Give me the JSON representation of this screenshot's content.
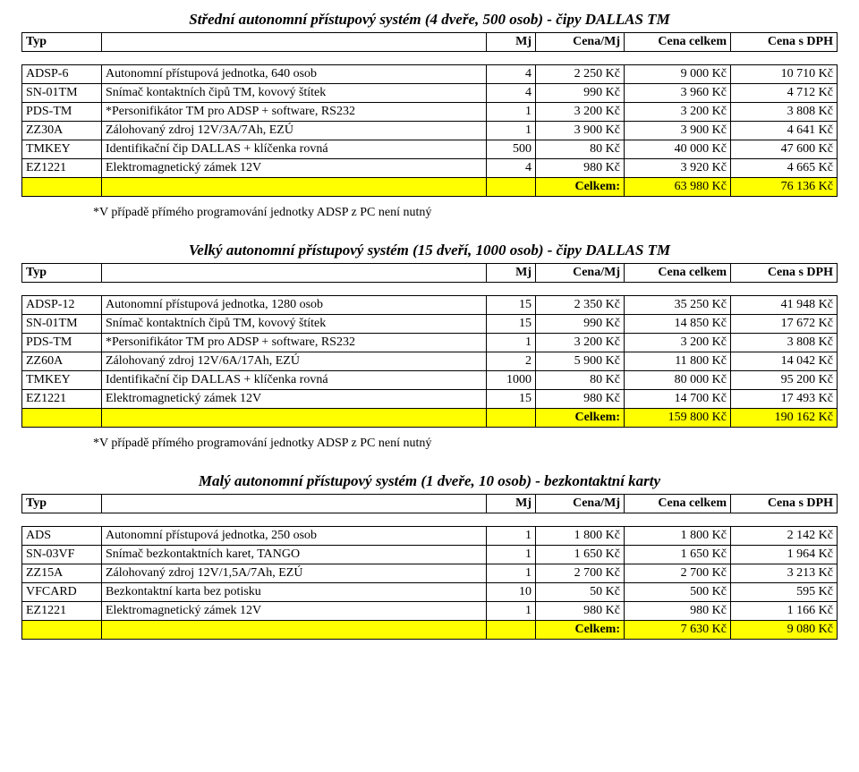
{
  "headers": {
    "typ": "Typ",
    "mj": "Mj",
    "cenamj": "Cena/Mj",
    "celkem": "Cena celkem",
    "dph": "Cena s DPH",
    "sum": "Celkem:"
  },
  "note": "*V případě přímého programování jednotky ADSP z PC není nutný",
  "sections": [
    {
      "title": "Střední autonomní přístupový systém (4 dveře, 500 osob) - čipy DALLAS TM",
      "rows": [
        {
          "typ": "ADSP-6",
          "desc": "Autonomní přístupová jednotka, 640 osob",
          "mj": "4",
          "cenamj": "2 250 Kč",
          "celkem": "9 000 Kč",
          "dph": "10 710 Kč"
        },
        {
          "typ": "SN-01TM",
          "desc": "Snímač kontaktních čipů TM, kovový štítek",
          "mj": "4",
          "cenamj": "990 Kč",
          "celkem": "3 960 Kč",
          "dph": "4 712 Kč"
        },
        {
          "typ": "PDS-TM",
          "desc": "*Personifikátor TM pro ADSP + software, RS232",
          "mj": "1",
          "cenamj": "3 200 Kč",
          "celkem": "3 200 Kč",
          "dph": "3 808 Kč"
        },
        {
          "typ": "ZZ30A",
          "desc": "Zálohovaný zdroj 12V/3A/7Ah, EZÚ",
          "mj": "1",
          "cenamj": "3 900 Kč",
          "celkem": "3 900 Kč",
          "dph": "4 641 Kč"
        },
        {
          "typ": "TMKEY",
          "desc": "Identifikační čip DALLAS + klíčenka rovná",
          "mj": "500",
          "cenamj": "80 Kč",
          "celkem": "40 000 Kč",
          "dph": "47 600 Kč"
        },
        {
          "typ": "EZ1221",
          "desc": "Elektromagnetický zámek 12V",
          "mj": "4",
          "cenamj": "980 Kč",
          "celkem": "3 920 Kč",
          "dph": "4 665 Kč"
        }
      ],
      "sum": {
        "celkem": "63 980 Kč",
        "dph": "76 136 Kč"
      },
      "showNote": true
    },
    {
      "title": "Velký autonomní přístupový systém (15 dveří, 1000 osob) - čipy DALLAS TM",
      "rows": [
        {
          "typ": "ADSP-12",
          "desc": "Autonomní přístupová jednotka, 1280 osob",
          "mj": "15",
          "cenamj": "2 350 Kč",
          "celkem": "35 250 Kč",
          "dph": "41 948 Kč"
        },
        {
          "typ": "SN-01TM",
          "desc": "Snímač kontaktních čipů TM, kovový štítek",
          "mj": "15",
          "cenamj": "990 Kč",
          "celkem": "14 850 Kč",
          "dph": "17 672 Kč"
        },
        {
          "typ": "PDS-TM",
          "desc": "*Personifikátor TM pro ADSP + software, RS232",
          "mj": "1",
          "cenamj": "3 200 Kč",
          "celkem": "3 200 Kč",
          "dph": "3 808 Kč"
        },
        {
          "typ": "ZZ60A",
          "desc": "Zálohovaný zdroj 12V/6A/17Ah, EZÚ",
          "mj": "2",
          "cenamj": "5 900 Kč",
          "celkem": "11 800 Kč",
          "dph": "14 042 Kč"
        },
        {
          "typ": "TMKEY",
          "desc": "Identifikační čip DALLAS + klíčenka rovná",
          "mj": "1000",
          "cenamj": "80 Kč",
          "celkem": "80 000 Kč",
          "dph": "95 200 Kč"
        },
        {
          "typ": "EZ1221",
          "desc": "Elektromagnetický zámek 12V",
          "mj": "15",
          "cenamj": "980 Kč",
          "celkem": "14 700 Kč",
          "dph": "17 493 Kč"
        }
      ],
      "sum": {
        "celkem": "159 800 Kč",
        "dph": "190 162 Kč"
      },
      "showNote": true
    },
    {
      "title": "Malý autonomní přístupový systém (1 dveře, 10 osob) - bezkontaktní karty",
      "rows": [
        {
          "typ": "ADS",
          "desc": "Autonomní přístupová jednotka, 250 osob",
          "mj": "1",
          "cenamj": "1 800 Kč",
          "celkem": "1 800 Kč",
          "dph": "2 142 Kč"
        },
        {
          "typ": "SN-03VF",
          "desc": "Snímač bezkontaktních karet, TANGO",
          "mj": "1",
          "cenamj": "1 650 Kč",
          "celkem": "1 650 Kč",
          "dph": "1 964 Kč"
        },
        {
          "typ": "ZZ15A",
          "desc": "Zálohovaný zdroj 12V/1,5A/7Ah, EZÚ",
          "mj": "1",
          "cenamj": "2 700 Kč",
          "celkem": "2 700 Kč",
          "dph": "3 213 Kč"
        },
        {
          "typ": "VFCARD",
          "desc": "Bezkontaktní karta bez potisku",
          "mj": "10",
          "cenamj": "50 Kč",
          "celkem": "500 Kč",
          "dph": "595 Kč"
        },
        {
          "typ": "EZ1221",
          "desc": "Elektromagnetický zámek 12V",
          "mj": "1",
          "cenamj": "980 Kč",
          "celkem": "980 Kč",
          "dph": "1 166 Kč"
        }
      ],
      "sum": {
        "celkem": "7 630 Kč",
        "dph": "9 080 Kč"
      },
      "showNote": false
    }
  ],
  "style": {
    "highlight_bg": "#ffff00",
    "border_color": "#000000",
    "font_family": "Times New Roman",
    "title_fontsize": 17,
    "body_fontsize": 14
  }
}
